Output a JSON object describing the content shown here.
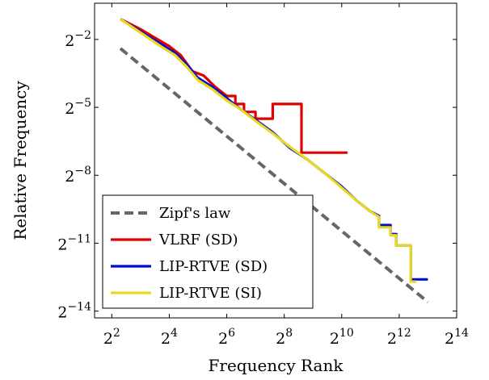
{
  "chart_data": {
    "type": "line",
    "xlabel": "Frequency Rank",
    "ylabel": "Relative Frequency",
    "x_scale": "log2",
    "y_scale": "log2",
    "xlim_log2": [
      1.4,
      14
    ],
    "ylim_log2": [
      -14.3,
      -0.4
    ],
    "x_ticks_log2": [
      2,
      4,
      6,
      8,
      10,
      12,
      14
    ],
    "y_ticks_log2": [
      -2,
      -5,
      -8,
      -11,
      -14
    ],
    "tick_base": "2",
    "legend": {
      "position": "bottom-left"
    },
    "series": [
      {
        "name": "Zipf's law",
        "color": "#666666",
        "style": "dashed",
        "log2_points": [
          [
            2.3,
            -2.4
          ],
          [
            13.0,
            -13.6
          ]
        ]
      },
      {
        "name": "VLRF (SD)",
        "color": "#e00000",
        "style": "solid",
        "log2_points": [
          [
            2.3,
            -1.1
          ],
          [
            3.0,
            -1.55
          ],
          [
            3.6,
            -2.0
          ],
          [
            4.0,
            -2.3
          ],
          [
            4.4,
            -2.7
          ],
          [
            4.8,
            -3.4
          ],
          [
            5.2,
            -3.6
          ],
          [
            5.6,
            -4.1
          ],
          [
            6.0,
            -4.5
          ],
          [
            6.3,
            -4.5
          ],
          [
            6.3,
            -4.85
          ],
          [
            6.6,
            -4.85
          ],
          [
            6.6,
            -5.2
          ],
          [
            7.0,
            -5.2
          ],
          [
            7.0,
            -5.5
          ],
          [
            7.6,
            -5.5
          ],
          [
            7.6,
            -4.85
          ],
          [
            8.6,
            -4.85
          ],
          [
            8.6,
            -7.0
          ],
          [
            10.2,
            -7.0
          ]
        ]
      },
      {
        "name": "LIP-RTVE (SD)",
        "color": "#0010d0",
        "style": "solid",
        "log2_points": [
          [
            2.3,
            -1.1
          ],
          [
            3.0,
            -1.65
          ],
          [
            3.7,
            -2.2
          ],
          [
            4.2,
            -2.6
          ],
          [
            4.6,
            -3.1
          ],
          [
            5.0,
            -3.7
          ],
          [
            5.5,
            -4.1
          ],
          [
            6.0,
            -4.6
          ],
          [
            6.5,
            -5.1
          ],
          [
            7.0,
            -5.55
          ],
          [
            7.6,
            -6.1
          ],
          [
            8.2,
            -6.8
          ],
          [
            8.8,
            -7.3
          ],
          [
            9.4,
            -7.9
          ],
          [
            10.0,
            -8.5
          ],
          [
            10.5,
            -9.1
          ],
          [
            11.0,
            -9.6
          ],
          [
            11.3,
            -9.8
          ],
          [
            11.3,
            -10.2
          ],
          [
            11.7,
            -10.2
          ],
          [
            11.7,
            -10.6
          ],
          [
            11.9,
            -10.6
          ],
          [
            11.9,
            -11.1
          ],
          [
            12.4,
            -11.1
          ],
          [
            12.4,
            -12.6
          ],
          [
            13.0,
            -12.6
          ]
        ]
      },
      {
        "name": "LIP-RTVE (SI)",
        "color": "#e8d820",
        "style": "solid",
        "log2_points": [
          [
            2.3,
            -1.1
          ],
          [
            3.0,
            -1.7
          ],
          [
            3.7,
            -2.3
          ],
          [
            4.2,
            -2.7
          ],
          [
            4.6,
            -3.2
          ],
          [
            5.0,
            -3.8
          ],
          [
            5.5,
            -4.2
          ],
          [
            6.0,
            -4.7
          ],
          [
            6.5,
            -5.1
          ],
          [
            7.0,
            -5.6
          ],
          [
            7.6,
            -6.15
          ],
          [
            8.2,
            -6.75
          ],
          [
            8.8,
            -7.3
          ],
          [
            9.4,
            -7.9
          ],
          [
            10.0,
            -8.55
          ],
          [
            10.5,
            -9.1
          ],
          [
            11.0,
            -9.6
          ],
          [
            11.3,
            -9.85
          ],
          [
            11.3,
            -10.3
          ],
          [
            11.7,
            -10.3
          ],
          [
            11.7,
            -10.65
          ],
          [
            11.9,
            -10.65
          ],
          [
            11.9,
            -11.1
          ],
          [
            12.4,
            -11.1
          ],
          [
            12.4,
            -12.7
          ],
          [
            12.6,
            -12.7
          ]
        ]
      }
    ]
  }
}
